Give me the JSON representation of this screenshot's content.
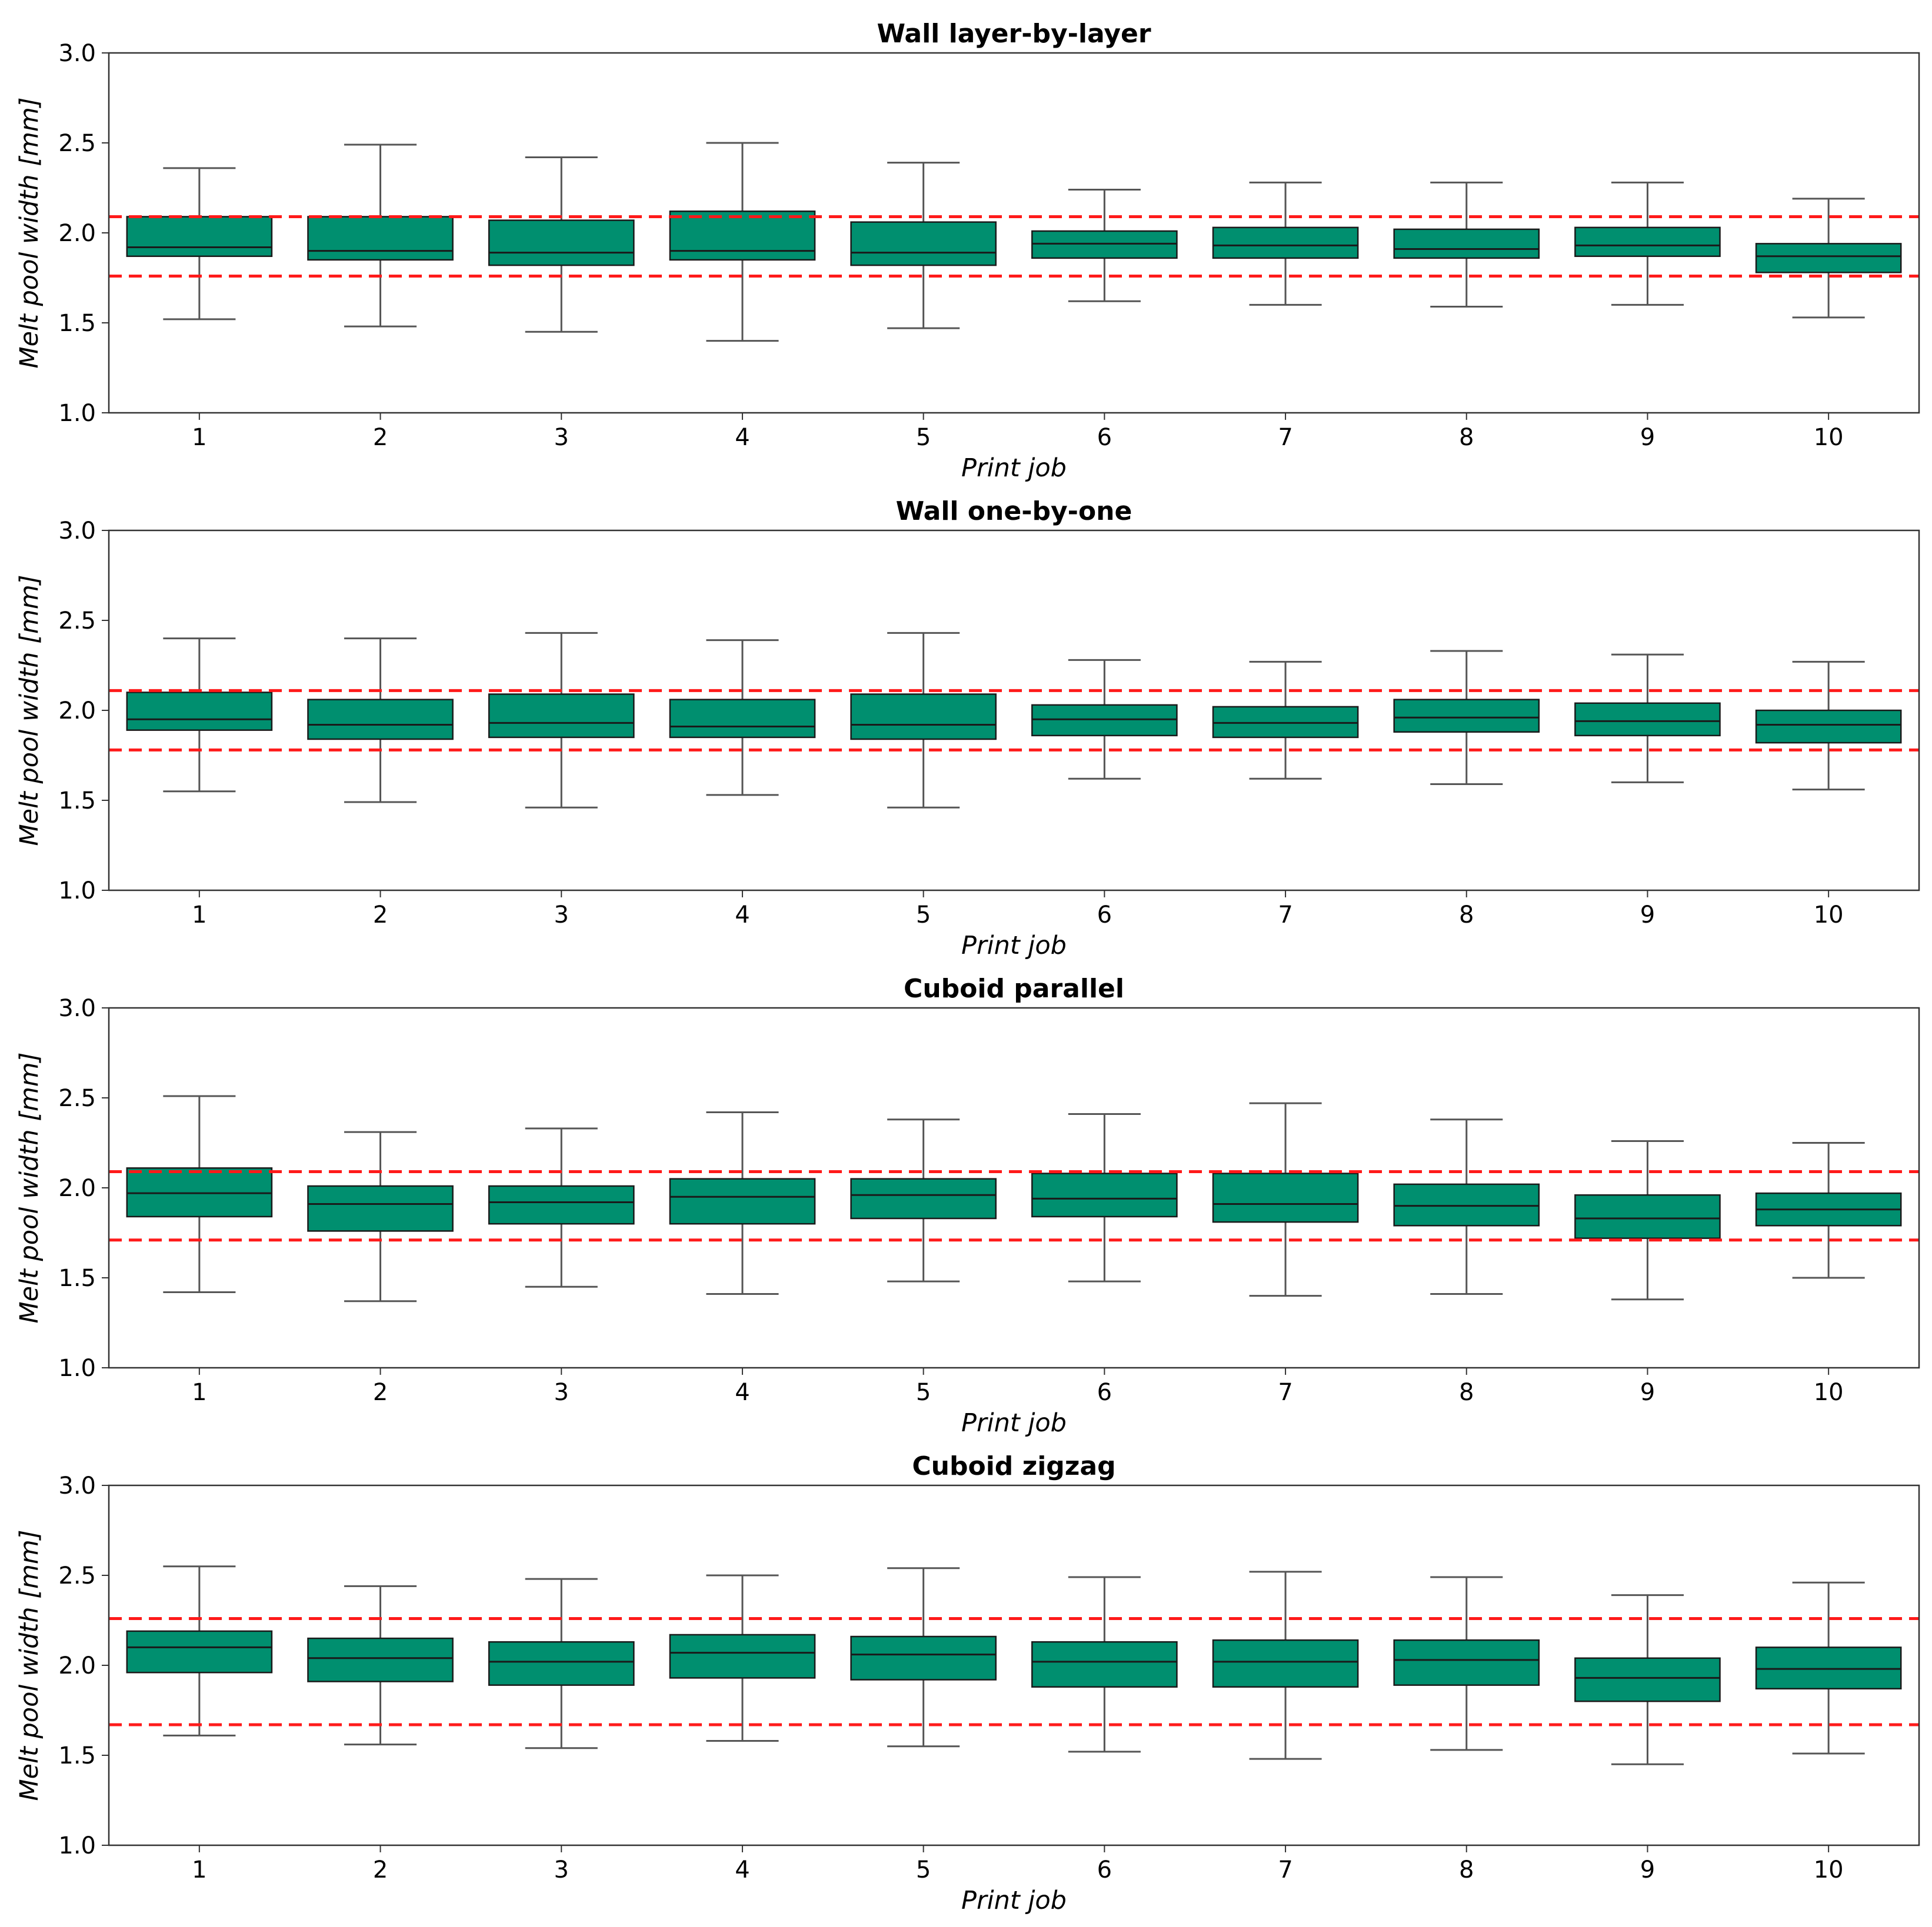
{
  "colors": {
    "box_fill": "#008f6f",
    "box_edge": "#1a1a1a",
    "whisker": "#555555",
    "median": "#1a1a1a",
    "reference_line": "#ff1a1a",
    "axes": "#333333"
  },
  "chart_data": [
    {
      "type": "boxplot",
      "title": "Wall layer-by-layer",
      "xlabel": "Print job",
      "ylabel": "Melt pool width [mm]",
      "ylim": [
        1.0,
        3.0
      ],
      "yticks": [
        "1.0",
        "1.5",
        "2.0",
        "2.5",
        "3.0"
      ],
      "categories": [
        "1",
        "2",
        "3",
        "4",
        "5",
        "6",
        "7",
        "8",
        "9",
        "10"
      ],
      "boxes": [
        {
          "whislo": 1.52,
          "q1": 1.87,
          "med": 1.92,
          "q3": 2.09,
          "whishi": 2.36
        },
        {
          "whislo": 1.48,
          "q1": 1.85,
          "med": 1.9,
          "q3": 2.09,
          "whishi": 2.49
        },
        {
          "whislo": 1.45,
          "q1": 1.82,
          "med": 1.89,
          "q3": 2.07,
          "whishi": 2.42
        },
        {
          "whislo": 1.4,
          "q1": 1.85,
          "med": 1.9,
          "q3": 2.12,
          "whishi": 2.5
        },
        {
          "whislo": 1.47,
          "q1": 1.82,
          "med": 1.89,
          "q3": 2.06,
          "whishi": 2.39
        },
        {
          "whislo": 1.62,
          "q1": 1.86,
          "med": 1.94,
          "q3": 2.01,
          "whishi": 2.24
        },
        {
          "whislo": 1.6,
          "q1": 1.86,
          "med": 1.93,
          "q3": 2.03,
          "whishi": 2.28
        },
        {
          "whislo": 1.59,
          "q1": 1.86,
          "med": 1.91,
          "q3": 2.02,
          "whishi": 2.28
        },
        {
          "whislo": 1.6,
          "q1": 1.87,
          "med": 1.93,
          "q3": 2.03,
          "whishi": 2.28
        },
        {
          "whislo": 1.53,
          "q1": 1.78,
          "med": 1.87,
          "q3": 1.94,
          "whishi": 2.19
        }
      ],
      "reference_lines": [
        2.09,
        1.76
      ]
    },
    {
      "type": "boxplot",
      "title": "Wall one-by-one",
      "xlabel": "Print job",
      "ylabel": "Melt pool width [mm]",
      "ylim": [
        1.0,
        3.0
      ],
      "yticks": [
        "1.0",
        "1.5",
        "2.0",
        "2.5",
        "3.0"
      ],
      "categories": [
        "1",
        "2",
        "3",
        "4",
        "5",
        "6",
        "7",
        "8",
        "9",
        "10"
      ],
      "boxes": [
        {
          "whislo": 1.55,
          "q1": 1.89,
          "med": 1.95,
          "q3": 2.1,
          "whishi": 2.4
        },
        {
          "whislo": 1.49,
          "q1": 1.84,
          "med": 1.92,
          "q3": 2.06,
          "whishi": 2.4
        },
        {
          "whislo": 1.46,
          "q1": 1.85,
          "med": 1.93,
          "q3": 2.09,
          "whishi": 2.43
        },
        {
          "whislo": 1.53,
          "q1": 1.85,
          "med": 1.91,
          "q3": 2.06,
          "whishi": 2.39
        },
        {
          "whislo": 1.46,
          "q1": 1.84,
          "med": 1.92,
          "q3": 2.09,
          "whishi": 2.43
        },
        {
          "whislo": 1.62,
          "q1": 1.86,
          "med": 1.95,
          "q3": 2.03,
          "whishi": 2.28
        },
        {
          "whislo": 1.62,
          "q1": 1.85,
          "med": 1.93,
          "q3": 2.02,
          "whishi": 2.27
        },
        {
          "whislo": 1.59,
          "q1": 1.88,
          "med": 1.96,
          "q3": 2.06,
          "whishi": 2.33
        },
        {
          "whislo": 1.6,
          "q1": 1.86,
          "med": 1.94,
          "q3": 2.04,
          "whishi": 2.31
        },
        {
          "whislo": 1.56,
          "q1": 1.82,
          "med": 1.92,
          "q3": 2.0,
          "whishi": 2.27
        }
      ],
      "reference_lines": [
        2.11,
        1.78
      ]
    },
    {
      "type": "boxplot",
      "title": "Cuboid parallel",
      "xlabel": "Print job",
      "ylabel": "Melt pool width [mm]",
      "ylim": [
        1.0,
        3.0
      ],
      "yticks": [
        "1.0",
        "1.5",
        "2.0",
        "2.5",
        "3.0"
      ],
      "categories": [
        "1",
        "2",
        "3",
        "4",
        "5",
        "6",
        "7",
        "8",
        "9",
        "10"
      ],
      "boxes": [
        {
          "whislo": 1.42,
          "q1": 1.84,
          "med": 1.97,
          "q3": 2.11,
          "whishi": 2.51
        },
        {
          "whislo": 1.37,
          "q1": 1.76,
          "med": 1.91,
          "q3": 2.01,
          "whishi": 2.31
        },
        {
          "whislo": 1.45,
          "q1": 1.8,
          "med": 1.92,
          "q3": 2.01,
          "whishi": 2.33
        },
        {
          "whislo": 1.41,
          "q1": 1.8,
          "med": 1.95,
          "q3": 2.05,
          "whishi": 2.42
        },
        {
          "whislo": 1.48,
          "q1": 1.83,
          "med": 1.96,
          "q3": 2.05,
          "whishi": 2.38
        },
        {
          "whislo": 1.48,
          "q1": 1.84,
          "med": 1.94,
          "q3": 2.08,
          "whishi": 2.41
        },
        {
          "whislo": 1.4,
          "q1": 1.81,
          "med": 1.91,
          "q3": 2.08,
          "whishi": 2.47
        },
        {
          "whislo": 1.41,
          "q1": 1.79,
          "med": 1.9,
          "q3": 2.02,
          "whishi": 2.38
        },
        {
          "whislo": 1.38,
          "q1": 1.72,
          "med": 1.83,
          "q3": 1.96,
          "whishi": 2.26
        },
        {
          "whislo": 1.5,
          "q1": 1.79,
          "med": 1.88,
          "q3": 1.97,
          "whishi": 2.25
        }
      ],
      "reference_lines": [
        2.09,
        1.71
      ]
    },
    {
      "type": "boxplot",
      "title": "Cuboid zigzag",
      "xlabel": "Print job",
      "ylabel": "Melt pool width [mm]",
      "ylim": [
        1.0,
        3.0
      ],
      "yticks": [
        "1.0",
        "1.5",
        "2.0",
        "2.5",
        "3.0"
      ],
      "categories": [
        "1",
        "2",
        "3",
        "4",
        "5",
        "6",
        "7",
        "8",
        "9",
        "10"
      ],
      "boxes": [
        {
          "whislo": 1.61,
          "q1": 1.96,
          "med": 2.1,
          "q3": 2.19,
          "whishi": 2.55
        },
        {
          "whislo": 1.56,
          "q1": 1.91,
          "med": 2.04,
          "q3": 2.15,
          "whishi": 2.44
        },
        {
          "whislo": 1.54,
          "q1": 1.89,
          "med": 2.02,
          "q3": 2.13,
          "whishi": 2.48
        },
        {
          "whislo": 1.58,
          "q1": 1.93,
          "med": 2.07,
          "q3": 2.17,
          "whishi": 2.5
        },
        {
          "whislo": 1.55,
          "q1": 1.92,
          "med": 2.06,
          "q3": 2.16,
          "whishi": 2.54
        },
        {
          "whislo": 1.52,
          "q1": 1.88,
          "med": 2.02,
          "q3": 2.13,
          "whishi": 2.49
        },
        {
          "whislo": 1.48,
          "q1": 1.88,
          "med": 2.02,
          "q3": 2.14,
          "whishi": 2.52
        },
        {
          "whislo": 1.53,
          "q1": 1.89,
          "med": 2.03,
          "q3": 2.14,
          "whishi": 2.49
        },
        {
          "whislo": 1.45,
          "q1": 1.8,
          "med": 1.93,
          "q3": 2.04,
          "whishi": 2.39
        },
        {
          "whislo": 1.51,
          "q1": 1.87,
          "med": 1.98,
          "q3": 2.1,
          "whishi": 2.46
        }
      ],
      "reference_lines": [
        2.26,
        1.67
      ]
    }
  ]
}
